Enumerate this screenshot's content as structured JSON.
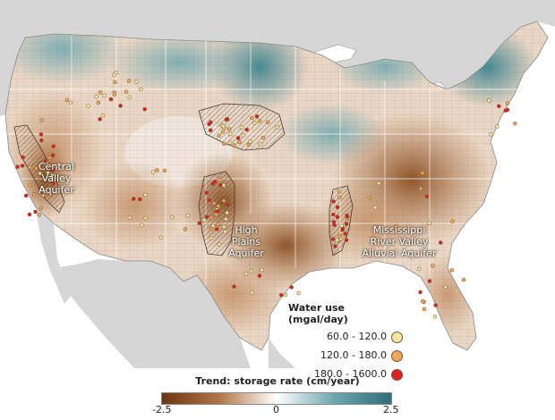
{
  "aquifers": [
    {
      "id": "central-valley",
      "lines": [
        "Central",
        "Valley",
        "Aquifer"
      ]
    },
    {
      "id": "high-plains",
      "lines": [
        "High",
        "Plains",
        "Aquifer"
      ]
    },
    {
      "id": "mississippi",
      "lines": [
        "Mississippi",
        "River Valley",
        "Alluvial Aquifer"
      ]
    }
  ],
  "water_use_legend": {
    "title": "Water use (mgal/day)",
    "items": [
      {
        "label": "60.0 - 120.0",
        "color": "#f8e6a0"
      },
      {
        "label": "120.0 - 180.0",
        "color": "#f0a858"
      },
      {
        "label": "180.0 - 1600.0",
        "color": "#e02020"
      }
    ]
  },
  "trend_legend": {
    "title": "Trend: storage rate (cm/year)",
    "min_label": "-2.5",
    "mid_label": "0",
    "max_label": "2.5",
    "colors": [
      "#6b3510",
      "#ffffff",
      "#2e6f7a"
    ]
  }
}
